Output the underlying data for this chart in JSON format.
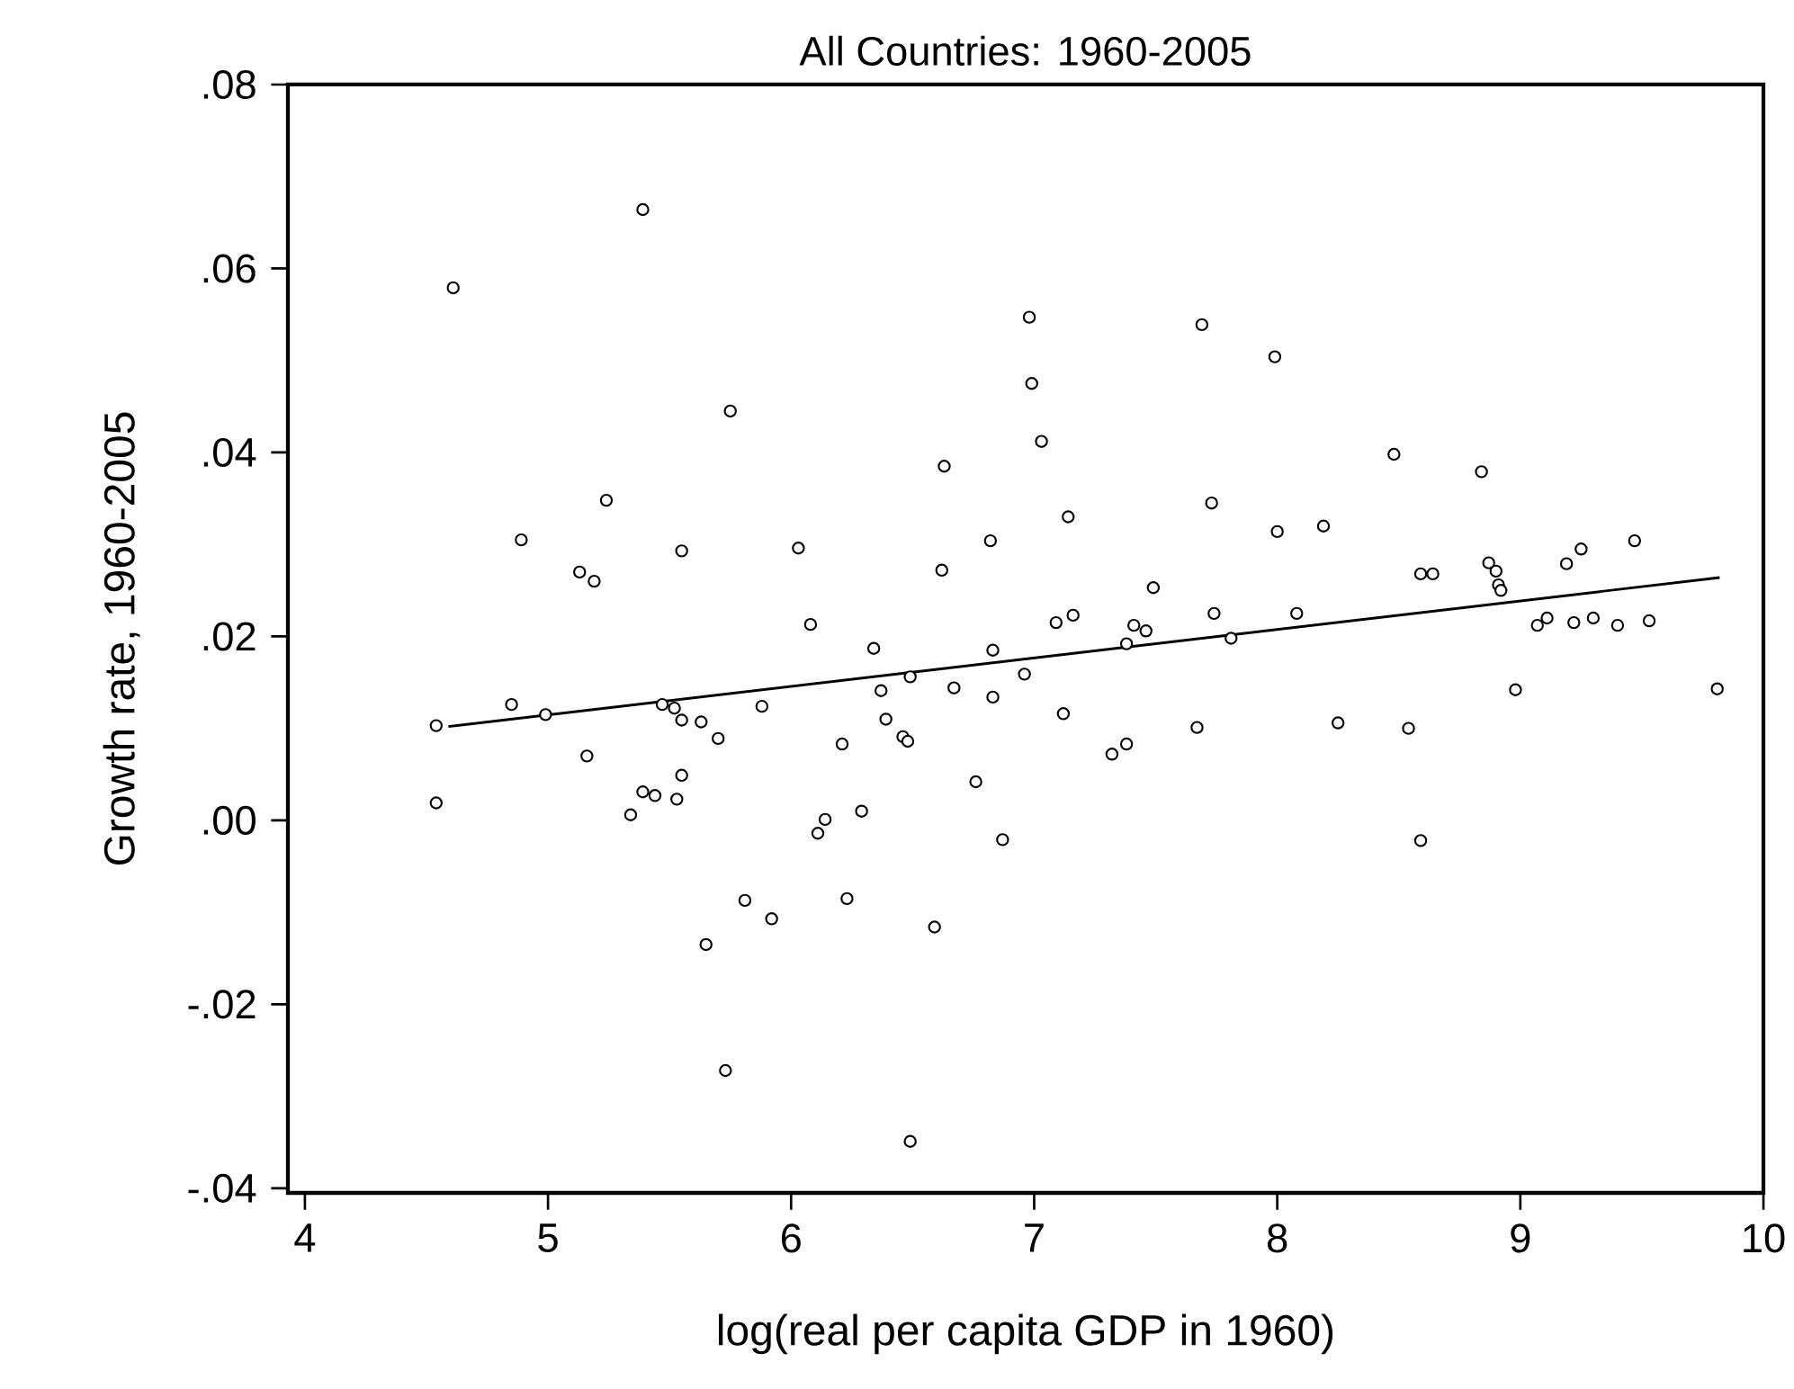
{
  "chart_data": {
    "type": "scatter",
    "title": "All Countries: 1960-2005",
    "xlabel": "log(real per capita GDP in 1960)",
    "ylabel": "Growth rate, 1960-2005",
    "xlim": [
      3.93,
      10
    ],
    "ylim": [
      -0.0405,
      0.08
    ],
    "xticks": [
      4,
      5,
      6,
      7,
      8,
      9,
      10
    ],
    "yticks": [
      {
        "value": -0.04,
        "label": "-.04"
      },
      {
        "value": -0.02,
        "label": "-.02"
      },
      {
        "value": 0,
        "label": ".00"
      },
      {
        "value": 0.02,
        "label": ".02"
      },
      {
        "value": 0.04,
        "label": ".04"
      },
      {
        "value": 0.06,
        "label": ".06"
      },
      {
        "value": 0.08,
        "label": ".08"
      }
    ],
    "grid": false,
    "marker": "circle",
    "series": [
      {
        "color": "#000000",
        "x": [
          4.54,
          4.54,
          4.61,
          4.85,
          4.89,
          4.99,
          5.13,
          5.19,
          5.16,
          5.24,
          5.39,
          5.39,
          5.34,
          5.44,
          5.47,
          5.52,
          5.55,
          5.55,
          5.55,
          5.53,
          5.63,
          5.65,
          5.7,
          5.75,
          5.73,
          5.81,
          5.88,
          5.92,
          6.98,
          7.69,
          7.99,
          6.99,
          7.03,
          6.63,
          7.73,
          8.0,
          7.14,
          6.03,
          6.82,
          6.62,
          7.49,
          6.08,
          7.09,
          7.16,
          7.41,
          7.46,
          7.74,
          7.81,
          7.38,
          6.34,
          6.83,
          6.49,
          6.96,
          6.37,
          6.67,
          6.83,
          7.12,
          6.39,
          7.67,
          6.21,
          6.46,
          6.48,
          7.38,
          7.32,
          6.76,
          6.29,
          6.14,
          6.11,
          6.87,
          6.23,
          6.59,
          6.49,
          8.48,
          8.84,
          8.19,
          9.47,
          9.25,
          9.19,
          8.87,
          8.9,
          8.59,
          8.64,
          8.91,
          8.92,
          8.08,
          9.11,
          9.07,
          9.22,
          9.3,
          9.4,
          9.53,
          8.98,
          9.81,
          8.25,
          8.54,
          8.59
        ],
        "values": [
          0.0103,
          0.0019,
          0.0579,
          0.0126,
          0.0305,
          0.0115,
          0.027,
          0.026,
          0.007,
          0.0348,
          0.0664,
          0.0031,
          0.0006,
          0.0027,
          0.0126,
          0.0122,
          0.0109,
          0.0293,
          0.0049,
          0.0023,
          0.0107,
          -0.0135,
          0.0089,
          0.0445,
          -0.0272,
          -0.0087,
          0.0124,
          -0.0107,
          0.0547,
          0.0539,
          0.0504,
          0.0475,
          0.0412,
          0.0385,
          0.0345,
          0.0314,
          0.033,
          0.0296,
          0.0304,
          0.0272,
          0.0253,
          0.0213,
          0.0215,
          0.0223,
          0.0212,
          0.0206,
          0.0225,
          0.0198,
          0.0192,
          0.0187,
          0.0185,
          0.0156,
          0.0159,
          0.0141,
          0.0144,
          0.0134,
          0.0116,
          0.011,
          0.0101,
          0.0083,
          0.0091,
          0.0086,
          0.0083,
          0.0072,
          0.0042,
          0.001,
          0.0001,
          -0.0014,
          -0.0021,
          -0.0085,
          -0.0116,
          -0.0349,
          0.0398,
          0.0379,
          0.032,
          0.0304,
          0.0295,
          0.0279,
          0.028,
          0.0271,
          0.0268,
          0.0268,
          0.0256,
          0.025,
          0.0225,
          0.022,
          0.0212,
          0.0215,
          0.022,
          0.0212,
          0.0217,
          0.0142,
          0.0143,
          0.0106,
          0.01,
          -0.0022
        ]
      },
      {
        "type": "line",
        "color": "#000000",
        "marker": "none",
        "line_style": "solid",
        "x": [
          4.59,
          9.82
        ],
        "values": [
          0.0102,
          0.0264
        ]
      }
    ]
  }
}
